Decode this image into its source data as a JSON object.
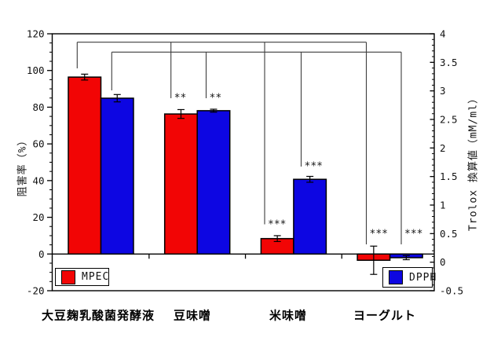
{
  "figure": {
    "background": "#ffffff",
    "palette": {
      "mpec_red": "#f20505",
      "dpph_blue": "#0d06e2",
      "frame": "#000000",
      "bracket_line": "#3d3d3d",
      "text": "#111111"
    },
    "left_axis": {
      "label": "阻害率（%）",
      "tick_values": [
        120,
        100,
        80,
        60,
        40,
        20,
        0,
        -20
      ],
      "tick_labels": [
        "120",
        "100",
        "80",
        "60",
        "40",
        "20",
        "0",
        "-20"
      ]
    },
    "right_axis": {
      "label": "Trolox 換算値（mM/ml）",
      "tick_values": [
        4,
        3.5,
        3,
        2.5,
        2,
        1.5,
        1,
        0.5,
        0,
        -0.5
      ],
      "tick_labels": [
        "4",
        "3.5",
        "3",
        "2.5",
        "2",
        "1.5",
        "1",
        "0.5",
        "0",
        "-0.5"
      ]
    },
    "categories": [
      "大豆麹乳酸菌発酵液",
      "豆味噌",
      "米味噌",
      "ヨーグルト"
    ],
    "legend": [
      {
        "label": "MPEC",
        "color": "#f20505"
      },
      {
        "label": "DPPH",
        "color": "#0d06e2"
      }
    ],
    "brackets": [
      {
        "series": "MPEC",
        "y": 53.7,
        "drops": [
          {
            "x": 98.3,
            "end": 87,
            "stars": ""
          },
          {
            "x": 217.7,
            "end": 125,
            "stars": "**",
            "sy": 124
          },
          {
            "x": 337,
            "end": 285.5,
            "stars": "***",
            "sy": 285
          },
          {
            "x": 466.5,
            "end": 311,
            "stars": "***",
            "sy": 297
          }
        ]
      },
      {
        "series": "DPPH",
        "y": 66.3,
        "drops": [
          {
            "x": 142.3,
            "end": 115,
            "stars": ""
          },
          {
            "x": 262.5,
            "end": 125,
            "stars": "**",
            "sy": 124
          },
          {
            "x": 383.5,
            "end": 212,
            "stars": "***",
            "sy": 211
          },
          {
            "x": 511,
            "end": 311,
            "stars": "***",
            "sy": 297
          }
        ]
      }
    ]
  },
  "chart_data": {
    "type": "bar",
    "title": "",
    "categories": [
      "大豆麹乳酸菌発酵液",
      "豆味噌",
      "米味噌",
      "ヨーグルト"
    ],
    "left_axis": {
      "label": "阻害率（%）",
      "range": [
        -20,
        120
      ],
      "major_tick_step": 20,
      "minor_tick_step": 5
    },
    "right_axis": {
      "label": "Trolox 換算値（mM/ml）",
      "range": [
        -0.5,
        4
      ],
      "major_tick_step": 0.5,
      "minor_tick_step": 0.1
    },
    "grid": false,
    "legend_position": "bottom-inside",
    "series": [
      {
        "name": "MPEC",
        "color": "#f20505",
        "axis": "left",
        "unit": "%",
        "values": [
          96.4,
          76.3,
          8.4,
          -3.4
        ],
        "errors": [
          1.6,
          2.4,
          1.6,
          7.7
        ]
      },
      {
        "name": "DPPH",
        "color": "#0d06e2",
        "axis": "left-as-plotted",
        "unit": "%",
        "values": [
          84.9,
          78.1,
          40.7,
          -2.0
        ],
        "errors": [
          2.0,
          0.8,
          1.6,
          1.1
        ],
        "trolox_equivalent_mM_ml": [
          2.87,
          2.65,
          1.45,
          0.07
        ]
      }
    ],
    "significance_markers": [
      {
        "category": "豆味噌",
        "series": "MPEC",
        "stars": "**"
      },
      {
        "category": "豆味噌",
        "series": "DPPH",
        "stars": "**"
      },
      {
        "category": "米味噌",
        "series": "MPEC",
        "stars": "***"
      },
      {
        "category": "米味噌",
        "series": "DPPH",
        "stars": "***"
      },
      {
        "category": "ヨーグルト",
        "series": "MPEC",
        "stars": "***"
      },
      {
        "category": "ヨーグルト",
        "series": "DPPH",
        "stars": "***"
      }
    ],
    "comparison_note": "Brackets connect each bar of 大豆麹乳酸菌発酵液 to the corresponding bars of the other three categories"
  }
}
